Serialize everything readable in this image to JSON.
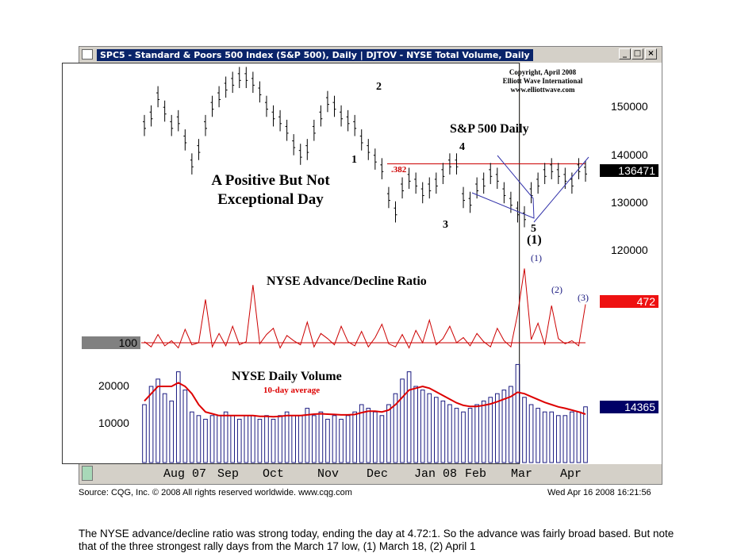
{
  "window": {
    "title": "SPC5 - Standard & Poors 500 Index (S&P 500), Daily   |   DJTOV - NYSE Total Volume, Daily",
    "title_icon": "chart-app-icon",
    "buttons": {
      "minimize": "_",
      "maximize": "□",
      "close": "×"
    }
  },
  "annotations": {
    "copyright_line1": "Copyright, April 2008",
    "copyright_line2": "Elliott Wave International",
    "copyright_line3": "www.elliottwave.com",
    "sp_label": "S&P 500 Daily",
    "headline_line1": "A Positive But Not",
    "headline_line2": "Exceptional Day",
    "adv_dec_label": "NYSE Advance/Decline Ratio",
    "volume_label": "NYSE Daily Volume",
    "ma_label": "10-day average",
    "fib_label": ".382",
    "waves": [
      "1",
      "2",
      "3",
      "4",
      "5",
      "(1)"
    ],
    "ratio_marks": [
      "(1)",
      "(2)",
      "(3)"
    ]
  },
  "right_axis": {
    "ticks": [
      "150000",
      "140000",
      "130000",
      "120000"
    ],
    "price_tag": "136471",
    "ratio_tag": "472",
    "volume_tag": "14365"
  },
  "left_axis": {
    "ratio_ref": "100",
    "volume_ticks": [
      "20000",
      "10000"
    ]
  },
  "x_axis": [
    "Aug 07",
    "Sep",
    "Oct",
    "Nov",
    "Dec",
    "Jan 08",
    "Feb",
    "Mar",
    "Apr"
  ],
  "colors": {
    "price": "#000000",
    "ratio": "#cc0000",
    "volume": "#1a1a80",
    "ma": "#dd0000",
    "fib": "#cc0000",
    "wedge": "#3333aa",
    "price_tag_bg": "#000000",
    "ratio_tag_bg": "#ee1111",
    "volume_tag_bg": "#000066"
  },
  "footer": {
    "source": "Source: CQG, Inc. © 2008 All rights reserved worldwide. www.cqg.com",
    "timestamp": "Wed Apr 16 2008 16:21:56"
  },
  "caption": "The NYSE advance/decline ratio was strong today, ending the day at 4.72:1. So the advance was fairly broad based. But note that of the three strongest rally days from the March 17 low, (1) March 18, (2) April 1",
  "chart_data": [
    {
      "type": "line",
      "title": "S&P 500 Daily",
      "series": [],
      "y_ticks": [
        150000,
        140000,
        130000,
        120000
      ],
      "x_labels": [
        "Aug 07",
        "Sep",
        "Oct",
        "Nov",
        "Dec",
        "Jan 08",
        "Feb",
        "Mar",
        "Apr"
      ],
      "price": [
        146,
        148,
        152,
        149,
        146,
        147,
        143,
        138,
        141,
        146,
        150,
        152,
        154,
        155,
        156,
        156,
        155,
        153,
        150,
        148,
        147,
        145,
        142,
        140,
        141,
        145,
        148,
        151,
        150,
        148,
        147,
        146,
        143,
        141,
        139,
        137,
        131,
        128,
        133,
        135,
        134,
        132,
        133,
        134,
        136,
        138,
        138,
        131,
        130,
        133,
        134,
        136,
        135,
        132,
        130,
        128,
        127,
        132,
        134,
        136,
        137,
        136,
        135,
        134,
        137,
        136.5
      ],
      "last_value": 136471
    },
    {
      "type": "line",
      "title": "NYSE Advance/Decline Ratio",
      "ratio_ref": 100,
      "ratio": [
        1.1,
        0.6,
        1.8,
        0.7,
        1.2,
        0.5,
        2.3,
        0.8,
        1.0,
        5.2,
        0.6,
        1.9,
        0.7,
        2.6,
        0.8,
        1.1,
        6.6,
        0.9,
        1.8,
        2.4,
        0.5,
        1.7,
        1.2,
        0.8,
        3.0,
        0.6,
        1.9,
        1.4,
        0.8,
        2.6,
        1.1,
        0.7,
        2.1,
        0.6,
        1.5,
        2.8,
        0.9,
        0.6,
        1.8,
        0.5,
        2.2,
        1.0,
        3.2,
        0.8,
        1.4,
        2.6,
        1.0,
        1.5,
        0.7,
        1.9,
        1.1,
        0.6,
        2.4,
        1.2,
        0.6,
        3.8,
        8.2,
        1.3,
        2.9,
        0.8,
        4.6,
        1.4,
        0.9,
        1.2,
        0.7,
        4.72
      ],
      "last_value": 472
    },
    {
      "type": "bar",
      "title": "NYSE Daily Volume",
      "y_ticks": [
        20000,
        10000
      ],
      "volume": [
        15,
        20,
        22,
        18,
        16,
        24,
        19,
        13,
        12,
        11,
        12,
        12,
        13,
        12,
        11,
        12,
        12,
        11,
        12,
        11,
        12,
        13,
        12,
        12,
        14,
        12,
        13,
        11,
        12,
        11,
        12,
        13,
        15,
        14,
        13,
        12,
        15,
        18,
        22,
        24,
        20,
        19,
        18,
        17,
        16,
        15,
        14,
        13,
        14,
        15,
        16,
        17,
        18,
        19,
        20,
        26,
        17,
        15,
        14,
        13,
        13,
        12,
        12,
        13,
        13,
        14.4
      ],
      "moving_average": [
        16,
        18,
        20,
        20,
        20,
        21,
        20,
        18,
        15,
        13,
        12.5,
        12,
        12,
        12,
        12,
        12,
        12,
        11.8,
        11.8,
        11.7,
        11.8,
        12,
        12,
        12,
        12.2,
        12.4,
        12.5,
        12.4,
        12.3,
        12.2,
        12.2,
        12.3,
        12.8,
        13.2,
        13.2,
        13,
        13.5,
        15,
        17,
        19,
        19.5,
        20,
        19.5,
        18.5,
        17.5,
        16.5,
        15.5,
        14.8,
        14.5,
        14.5,
        14.8,
        15.2,
        15.8,
        16.5,
        17.2,
        18.4,
        18,
        17.2,
        16.4,
        15.6,
        15,
        14.4,
        14,
        13.5,
        13,
        12.4
      ],
      "last_value": 14365
    }
  ]
}
